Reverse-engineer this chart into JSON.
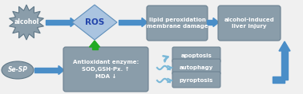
{
  "bg_color": "#f0f0f0",
  "shape_fill_gray": "#8a9daa",
  "shape_fill_light_blue": "#9ab8d8",
  "arrow_blue": "#4a8ec8",
  "arrow_light_blue": "#7ab8d8",
  "arrow_green": "#22aa22",
  "title": "alcohol",
  "ros": "ROS",
  "lipid": "lipid peroxidation\nmembrane damage",
  "liver": "alcohol-induced\nliver injury",
  "sesp": "Se-SP",
  "antioxidant": "Antioxidant enzyme:\nSOD,GSH-Px. ↑\nMDA ↓",
  "apoptosis": "apoptosis",
  "autophagy": "autophagy",
  "pyroptosis": "pyroptosis",
  "fig_width": 3.78,
  "fig_height": 1.18,
  "dpi": 100
}
